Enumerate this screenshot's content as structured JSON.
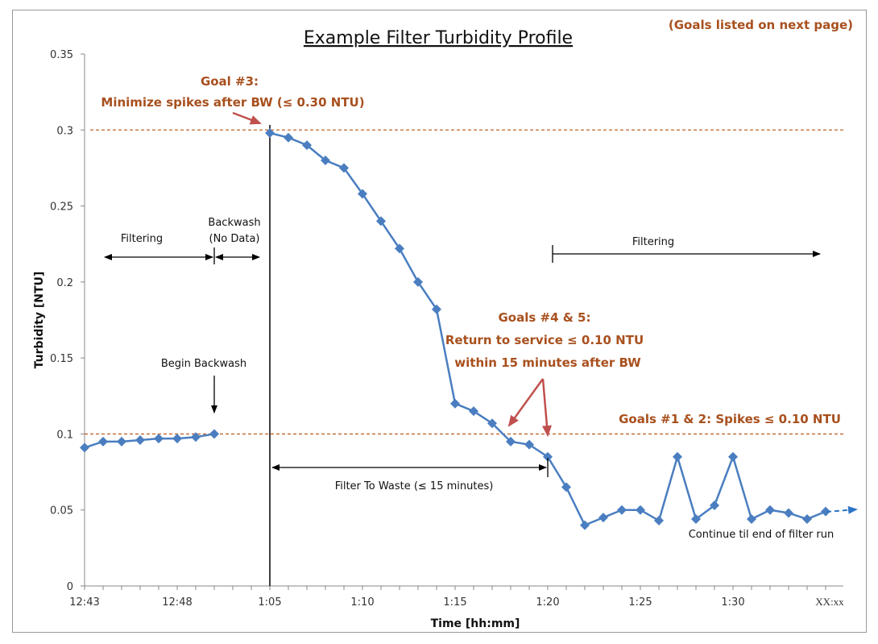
{
  "chart_data": {
    "type": "line",
    "title": "Example Filter Turbidity Profile",
    "xlabel": "Time [hh:mm]",
    "ylabel": "Turbidity [NTU]",
    "ylim": [
      0,
      0.35
    ],
    "y_ticks": [
      "0",
      "0.05",
      "0.1",
      "0.15",
      "0.2",
      "0.25",
      "0.3",
      "0.35"
    ],
    "x_tick_labels": [
      "12:43",
      "12:48",
      "1:05",
      "1:10",
      "1:15",
      "1:20",
      "1:25",
      "1:30",
      "XX:xx"
    ],
    "grid": false,
    "series": [
      {
        "x": [
          "12:43",
          "12:44",
          "12:45",
          "12:46",
          "12:47",
          "12:48",
          "12:49",
          "12:50"
        ],
        "values": [
          0.091,
          0.095,
          0.095,
          0.096,
          0.097,
          0.097,
          0.098,
          0.1
        ]
      },
      {
        "x": [
          "1:05",
          "1:06",
          "1:07",
          "1:08",
          "1:09",
          "1:10",
          "1:11",
          "1:12",
          "1:13",
          "1:14",
          "1:15",
          "1:16",
          "1:17",
          "1:18",
          "1:19",
          "1:20",
          "1:21",
          "1:22",
          "1:23",
          "1:24",
          "1:25",
          "1:26",
          "1:27",
          "1:28",
          "1:29",
          "1:30",
          "1:31",
          "1:32",
          "1:33",
          "1:34",
          "XX:xx"
        ],
        "values": [
          0.298,
          0.295,
          0.29,
          0.28,
          0.275,
          0.258,
          0.24,
          0.222,
          0.2,
          0.182,
          0.12,
          0.115,
          0.107,
          0.095,
          0.093,
          0.085,
          0.065,
          0.04,
          0.045,
          0.05,
          0.05,
          0.043,
          0.085,
          0.044,
          0.053,
          0.085,
          0.044,
          0.05,
          0.048,
          0.044,
          0.049
        ]
      }
    ],
    "reference_lines": [
      0.3,
      0.1
    ],
    "colors": {
      "series": "#4A7EC0",
      "goal_text": "#A8501E",
      "goal_arrow": "#C0504D",
      "reference_line": "#C0652A"
    }
  },
  "annotations": {
    "goals_note": "(Goals listed on next page)",
    "goal3_title": "Goal #3:",
    "goal3_text": "Minimize spikes after BW (≤ 0.30 NTU)",
    "goals45_title": "Goals #4 & 5:",
    "goals45_line1": "Return to service  ≤ 0.10 NTU",
    "goals45_line2": "within 15 minutes after BW",
    "goals12": "Goals #1 & 2: Spikes ≤ 0.10 NTU",
    "filtering_left": "Filtering",
    "backwash": "Backwash",
    "no_data": "(No Data)",
    "filtering_right": "Filtering",
    "begin_backwash": "Begin Backwash",
    "filter_to_waste": "Filter To Waste (≤ 15 minutes)",
    "continue": "Continue  til end of filter run"
  }
}
